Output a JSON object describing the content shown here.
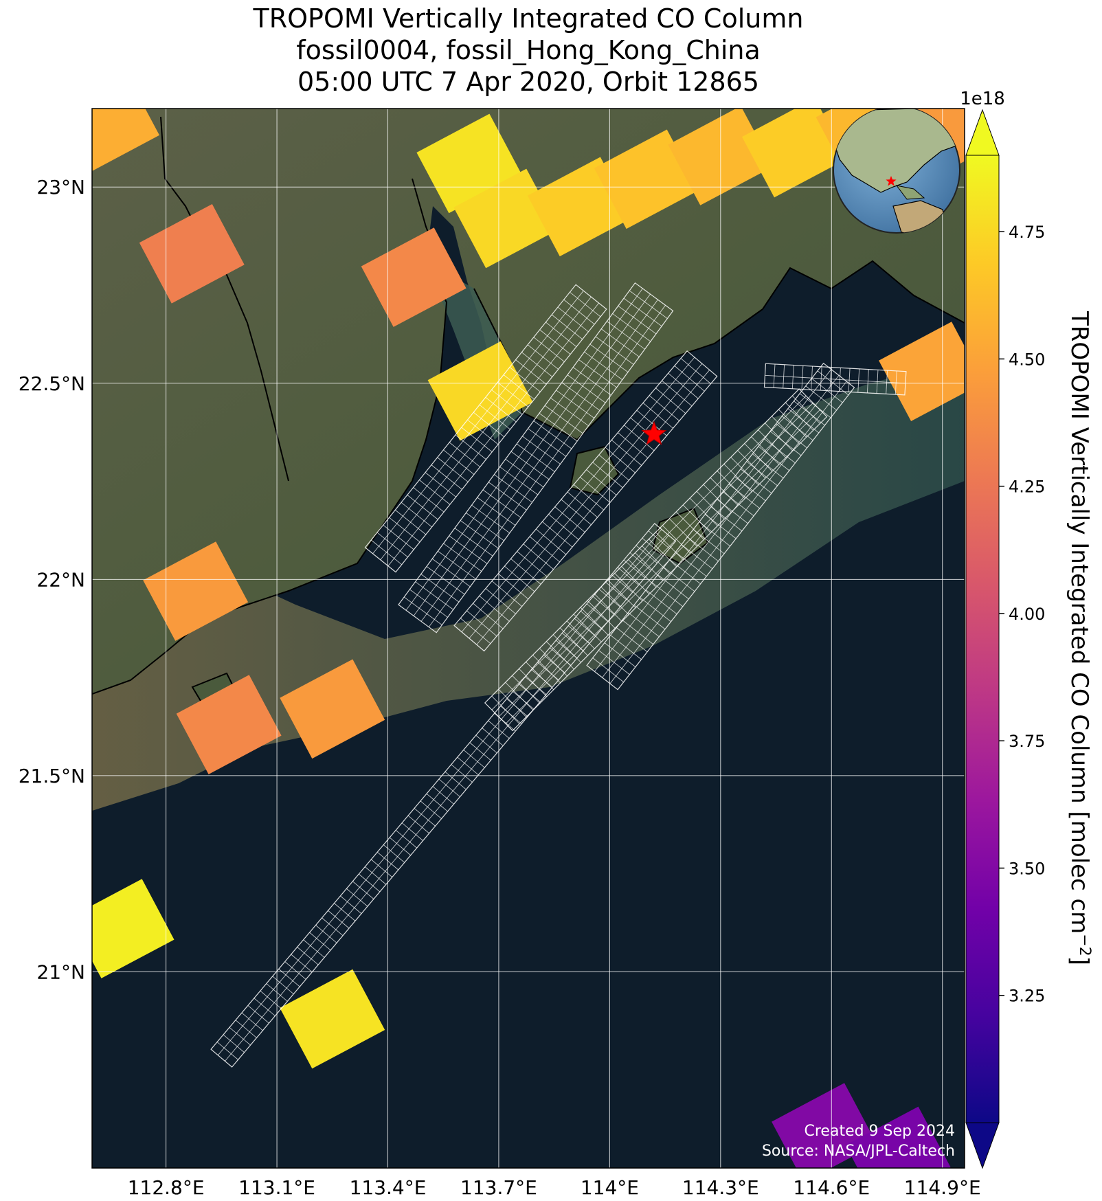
{
  "title": {
    "line1": "TROPOMI Vertically Integrated CO Column",
    "line2": "fossil0004, fossil_Hong_Kong_China",
    "line3": "05:00 UTC 7 Apr 2020, Orbit 12865"
  },
  "map": {
    "lon_range": [
      112.6,
      114.96
    ],
    "lat_range": [
      20.5,
      23.2
    ],
    "lon_ticks": [
      {
        "value": 112.8,
        "label": "112.8°E"
      },
      {
        "value": 113.1,
        "label": "113.1°E"
      },
      {
        "value": 113.4,
        "label": "113.4°E"
      },
      {
        "value": 113.7,
        "label": "113.7°E"
      },
      {
        "value": 114.0,
        "label": "114°E"
      },
      {
        "value": 114.3,
        "label": "114.3°E"
      },
      {
        "value": 114.6,
        "label": "114.6°E"
      },
      {
        "value": 114.9,
        "label": "114.9°E"
      }
    ],
    "lat_ticks": [
      {
        "value": 23.0,
        "label": "23°N"
      },
      {
        "value": 22.5,
        "label": "22.5°N"
      },
      {
        "value": 22.0,
        "label": "22°N"
      },
      {
        "value": 21.5,
        "label": "21.5°N"
      },
      {
        "value": 21.0,
        "label": "21°N"
      }
    ],
    "grid": true,
    "site_marker": {
      "lon": 114.12,
      "lat": 22.37,
      "color": "#ff0000",
      "icon": "star-icon"
    },
    "inset_globe": {
      "placement": "top-right",
      "icon": "globe-icon"
    }
  },
  "chart_data": {
    "type": "heatmap",
    "value_unit": "molec cm^-2",
    "value_scale": "1e18",
    "soundings": [
      {
        "lon": 112.64,
        "lat": 23.16,
        "value": 4.55
      },
      {
        "lon": 112.87,
        "lat": 22.83,
        "value": 4.3
      },
      {
        "lon": 113.62,
        "lat": 23.06,
        "value": 4.8
      },
      {
        "lon": 113.72,
        "lat": 22.92,
        "value": 4.75
      },
      {
        "lon": 113.47,
        "lat": 22.77,
        "value": 4.35
      },
      {
        "lon": 113.65,
        "lat": 22.48,
        "value": 4.75
      },
      {
        "lon": 113.92,
        "lat": 22.95,
        "value": 4.7
      },
      {
        "lon": 114.1,
        "lat": 23.02,
        "value": 4.65
      },
      {
        "lon": 114.3,
        "lat": 23.08,
        "value": 4.6
      },
      {
        "lon": 114.5,
        "lat": 23.1,
        "value": 4.7
      },
      {
        "lon": 114.7,
        "lat": 23.15,
        "value": 4.6
      },
      {
        "lon": 114.93,
        "lat": 23.15,
        "value": 4.45
      },
      {
        "lon": 114.87,
        "lat": 22.53,
        "value": 4.5
      },
      {
        "lon": 112.88,
        "lat": 21.97,
        "value": 4.45
      },
      {
        "lon": 112.97,
        "lat": 21.63,
        "value": 4.35
      },
      {
        "lon": 113.25,
        "lat": 21.67,
        "value": 4.45
      },
      {
        "lon": 112.68,
        "lat": 21.11,
        "value": 4.85
      },
      {
        "lon": 113.25,
        "lat": 20.88,
        "value": 4.8
      },
      {
        "lon": 114.58,
        "lat": 20.59,
        "value": 3.5
      },
      {
        "lon": 114.78,
        "lat": 20.53,
        "value": 3.45
      }
    ],
    "target_footprints": [
      {
        "name": "",
        "a": [
          113.38,
          22.05
        ],
        "b": [
          113.95,
          22.72
        ],
        "half_width": 0.05
      },
      {
        "name": "",
        "a": [
          113.48,
          21.9
        ],
        "b": [
          114.12,
          22.72
        ],
        "half_width": 0.06
      },
      {
        "name": "",
        "a": [
          113.62,
          21.85
        ],
        "b": [
          114.25,
          22.55
        ],
        "half_width": 0.05
      },
      {
        "name": "",
        "a": [
          113.98,
          21.75
        ],
        "b": [
          114.62,
          22.52
        ],
        "half_width": 0.05
      },
      {
        "name": "",
        "a": [
          114.42,
          22.52
        ],
        "b": [
          114.8,
          22.5
        ],
        "half_width": 0.03
      },
      {
        "name": "",
        "a": [
          112.95,
          20.78
        ],
        "b": [
          114.15,
          22.12
        ],
        "half_width": 0.035
      },
      {
        "name": "",
        "a": [
          113.7,
          21.65
        ],
        "b": [
          114.55,
          22.45
        ],
        "half_width": 0.05
      }
    ]
  },
  "colorbar": {
    "multiplier": "1e18",
    "label": "TROPOMI Vertically Integrated CO Column [molec cm",
    "label_sup": "−2",
    "label_close": "]",
    "range": [
      3.0,
      4.9
    ],
    "ticks": [
      {
        "value": 4.75,
        "label": "4.75"
      },
      {
        "value": 4.5,
        "label": "4.50"
      },
      {
        "value": 4.25,
        "label": "4.25"
      },
      {
        "value": 4.0,
        "label": "4.00"
      },
      {
        "value": 3.75,
        "label": "3.75"
      },
      {
        "value": 3.5,
        "label": "3.50"
      },
      {
        "value": 3.25,
        "label": "3.25"
      }
    ],
    "colormap": "plasma",
    "stops": [
      "#0d0887",
      "#46039f",
      "#7201a8",
      "#9c179e",
      "#bd3786",
      "#d8576b",
      "#ed7953",
      "#fb9f3a",
      "#fdca26",
      "#f0f921"
    ]
  },
  "credits": {
    "created": "Created 9 Sep 2024",
    "source": "Source: NASA/JPL-Caltech"
  }
}
